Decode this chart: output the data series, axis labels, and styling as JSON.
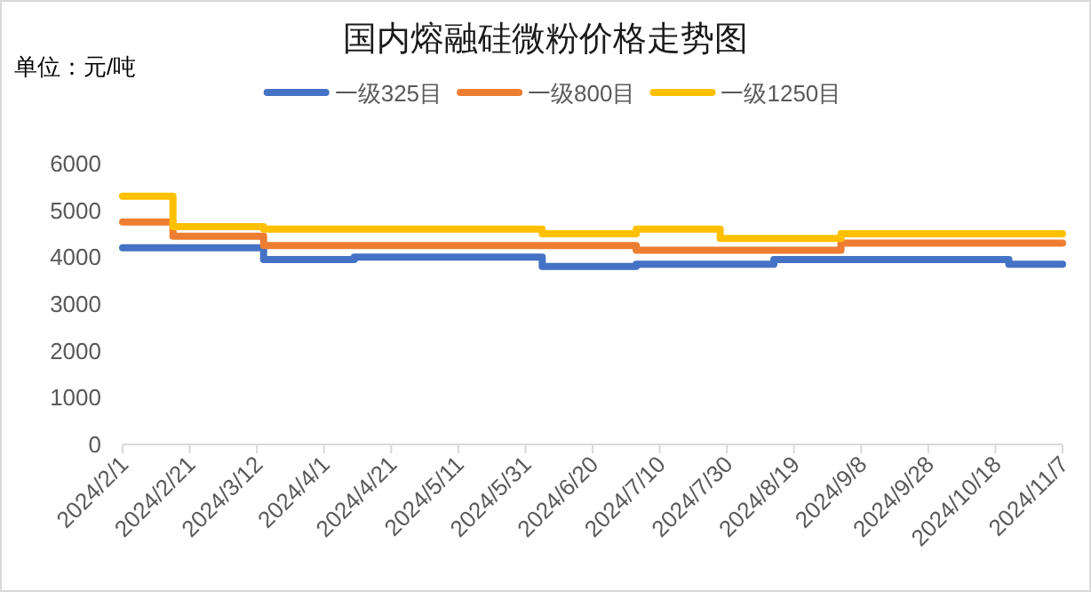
{
  "chart_data": {
    "type": "step",
    "title": "国内熔融硅微粉价格走势图",
    "annotations": [
      "单位：元/吨"
    ],
    "xlim": [
      "2024-02-01",
      "2024-11-07"
    ],
    "xticks": [
      {
        "value": "2024-02-01",
        "label": "2024/2/1"
      },
      {
        "value": "2024-02-21",
        "label": "2024/2/21"
      },
      {
        "value": "2024-03-12",
        "label": "2024/3/12"
      },
      {
        "value": "2024-04-01",
        "label": "2024/4/1"
      },
      {
        "value": "2024-04-21",
        "label": "2024/4/21"
      },
      {
        "value": "2024-05-11",
        "label": "2024/5/11"
      },
      {
        "value": "2024-05-31",
        "label": "2024/5/31"
      },
      {
        "value": "2024-06-20",
        "label": "2024/6/20"
      },
      {
        "value": "2024-07-10",
        "label": "2024/7/10"
      },
      {
        "value": "2024-07-30",
        "label": "2024/7/30"
      },
      {
        "value": "2024-08-19",
        "label": "2024/8/19"
      },
      {
        "value": "2024-09-08",
        "label": "2024/9/8"
      },
      {
        "value": "2024-09-28",
        "label": "2024/9/28"
      },
      {
        "value": "2024-10-18",
        "label": "2024/10/18"
      },
      {
        "value": "2024-11-07",
        "label": "2024/11/7"
      }
    ],
    "ylim": [
      0,
      6000
    ],
    "yticks": [
      0,
      1000,
      2000,
      3000,
      4000,
      5000,
      6000
    ],
    "grid": false,
    "legend": "top",
    "marker": "none",
    "line_style": "solid",
    "series": [
      {
        "name": "一级325目",
        "color": "#4472c4",
        "x": [
          "2024-02-01",
          "2024-03-14",
          "2024-04-10",
          "2024-06-05",
          "2024-07-03",
          "2024-08-13",
          "2024-10-22",
          "2024-11-07"
        ],
        "values": [
          4200,
          3950,
          4000,
          3800,
          3850,
          3950,
          3850,
          3850
        ]
      },
      {
        "name": "一级800目",
        "color": "#ed7d31",
        "x": [
          "2024-02-01",
          "2024-02-16",
          "2024-03-14",
          "2024-07-03",
          "2024-09-02",
          "2024-11-07"
        ],
        "values": [
          4750,
          4450,
          4250,
          4150,
          4300,
          4300
        ]
      },
      {
        "name": "一级1250目",
        "color": "#ffc000",
        "x": [
          "2024-02-01",
          "2024-02-16",
          "2024-03-14",
          "2024-06-05",
          "2024-07-03",
          "2024-07-28",
          "2024-09-02",
          "2024-11-07"
        ],
        "values": [
          5300,
          4650,
          4600,
          4500,
          4600,
          4400,
          4500,
          4500
        ]
      }
    ]
  }
}
